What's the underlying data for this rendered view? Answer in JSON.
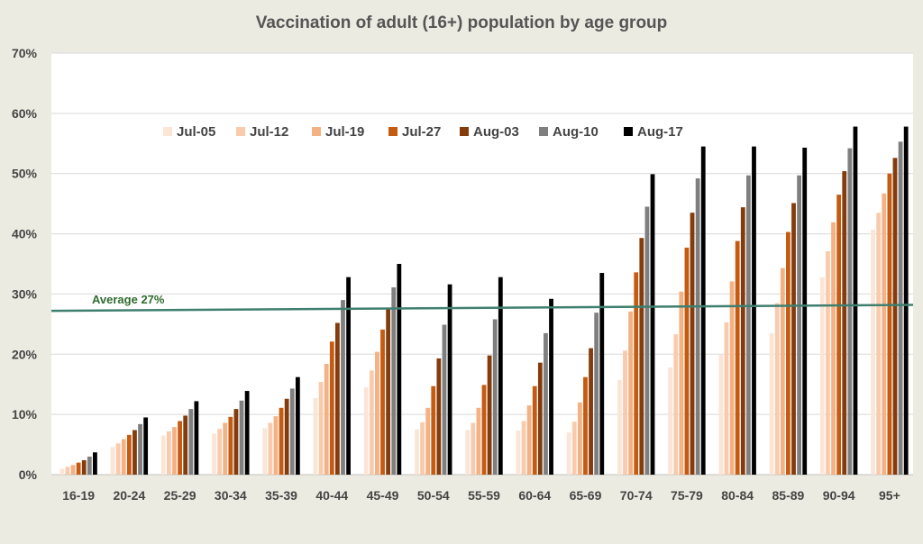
{
  "chart_data": {
    "type": "bar",
    "title": "Vaccination of adult (16+) population by age group",
    "xlabel": "",
    "ylabel": "",
    "ylim": [
      0,
      70
    ],
    "y_ticks": [
      "0%",
      "10%",
      "20%",
      "30%",
      "40%",
      "50%",
      "60%",
      "70%"
    ],
    "y_tick_values": [
      0,
      10,
      20,
      30,
      40,
      50,
      60,
      70
    ],
    "grid": true,
    "legend_position": "top-left",
    "categories": [
      "16-19",
      "20-24",
      "25-29",
      "30-34",
      "35-39",
      "40-44",
      "45-49",
      "50-54",
      "55-59",
      "60-64",
      "65-69",
      "70-74",
      "75-79",
      "80-84",
      "85-89",
      "90-94",
      "95+"
    ],
    "series": [
      {
        "name": "Jul-05",
        "color": "#fbe5d6",
        "values": [
          1.0,
          4.6,
          6.5,
          6.8,
          7.7,
          12.7,
          14.5,
          7.5,
          7.4,
          7.3,
          7.0,
          15.7,
          17.8,
          19.9,
          23.5,
          32.8,
          40.7
        ]
      },
      {
        "name": "Jul-12",
        "color": "#f8cbad",
        "values": [
          1.3,
          5.2,
          7.2,
          7.6,
          8.6,
          15.4,
          17.3,
          8.7,
          8.6,
          8.9,
          8.8,
          20.6,
          23.3,
          25.3,
          28.5,
          37.1,
          43.5
        ]
      },
      {
        "name": "Jul-19",
        "color": "#f4b183",
        "values": [
          1.6,
          5.9,
          7.9,
          8.6,
          9.7,
          18.4,
          20.4,
          11.1,
          11.1,
          11.5,
          12.0,
          27.1,
          30.4,
          32.1,
          34.3,
          41.9,
          46.7
        ]
      },
      {
        "name": "Jul-27",
        "color": "#c55a11",
        "values": [
          2.0,
          6.6,
          8.9,
          9.6,
          11.1,
          22.1,
          24.1,
          14.7,
          14.9,
          14.7,
          16.2,
          33.6,
          37.7,
          38.8,
          40.3,
          46.5,
          50.0
        ]
      },
      {
        "name": "Aug-03",
        "color": "#843c0c",
        "values": [
          2.4,
          7.4,
          9.8,
          10.9,
          12.6,
          25.2,
          27.5,
          19.3,
          19.8,
          18.6,
          21.0,
          39.3,
          43.5,
          44.4,
          45.1,
          50.4,
          52.6
        ]
      },
      {
        "name": "Aug-10",
        "color": "#7f7f7f",
        "values": [
          3.0,
          8.4,
          10.9,
          12.3,
          14.3,
          29.0,
          31.1,
          24.9,
          25.8,
          23.5,
          26.9,
          44.5,
          49.2,
          49.7,
          49.7,
          54.2,
          55.3
        ]
      },
      {
        "name": "Aug-17",
        "color": "#000000",
        "values": [
          3.7,
          9.5,
          12.2,
          13.9,
          16.2,
          32.8,
          35.0,
          31.6,
          32.8,
          29.2,
          33.5,
          49.9,
          54.5,
          54.5,
          54.3,
          57.8,
          57.8
        ]
      }
    ],
    "annotations": [
      {
        "text": "Average 27%",
        "y_start": 27.2,
        "y_end": 28.2,
        "color": "#3f7f6f"
      }
    ]
  },
  "colors": {
    "background": "#ecebe2",
    "plot_background": "#ffffff",
    "gridline": "#d9d9d9",
    "average_line": "#3f7f6f",
    "average_label": "#2e6b2e"
  }
}
